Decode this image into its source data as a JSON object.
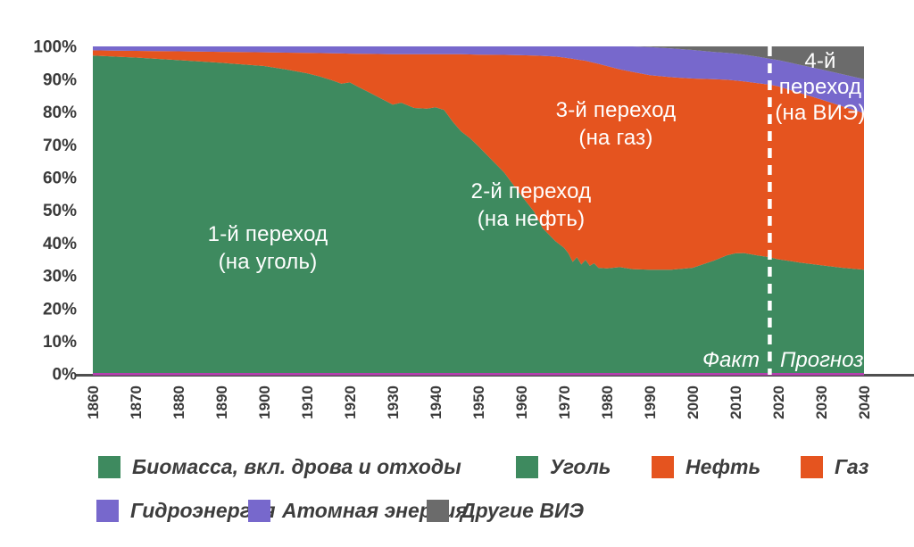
{
  "axes": {
    "y_ticks": [
      "100%",
      "90%",
      "80%",
      "70%",
      "60%",
      "50%",
      "40%",
      "30%",
      "20%",
      "10%",
      "0%"
    ],
    "x_ticks": [
      "1860",
      "1870",
      "1880",
      "1890",
      "1900",
      "1910",
      "1920",
      "1930",
      "1940",
      "1950",
      "1960",
      "1970",
      "1980",
      "1990",
      "2000",
      "2010",
      "2020",
      "2030",
      "2040"
    ]
  },
  "annotations": {
    "t1": {
      "line1": "1-й переход",
      "line2": "(на уголь)"
    },
    "t2": {
      "line1": "2-й переход",
      "line2": "(на нефть)"
    },
    "t3": {
      "line1": "3-й переход",
      "line2": "(на газ)"
    },
    "t4": {
      "line1": "4-й",
      "line2": "переход",
      "line3": "(на ВИЭ)"
    },
    "fact_label": "Факт",
    "forecast_label": "Прогноз"
  },
  "legend": {
    "items": [
      {
        "label": "Биомасса, вкл. дрова и отходы",
        "color": "#3e8a5f"
      },
      {
        "label": "Уголь",
        "color": "#3e8a5f"
      },
      {
        "label": "Нефть",
        "color": "#e5541f"
      },
      {
        "label": "Газ",
        "color": "#e5541f"
      },
      {
        "label": "Гидроэнергия",
        "color": "#7768cc"
      },
      {
        "label": "Атомная энергия",
        "color": "#7768cc"
      },
      {
        "label": "Другие ВИЭ",
        "color": "#6b6b6b"
      }
    ]
  },
  "colors": {
    "green": "#3e8a5f",
    "orange": "#e5541f",
    "purple": "#7768cc",
    "gray": "#6b6b6b",
    "axis_text": "#3a3a3a",
    "axis_line": "#4f4f4f",
    "baseline_magenta": "#b63fb0",
    "divider": "#ffffff",
    "background": "#ffffff"
  },
  "chart_data": {
    "type": "area",
    "stacked": true,
    "unit": "% share of primary energy",
    "ylim": [
      0,
      100
    ],
    "xlim": [
      1860,
      2040
    ],
    "grid": false,
    "legend_position": "bottom",
    "divider_year": 2018,
    "x": [
      1860,
      1870,
      1880,
      1890,
      1900,
      1905,
      1910,
      1913,
      1916,
      1918,
      1920,
      1922,
      1925,
      1928,
      1930,
      1932,
      1935,
      1938,
      1940,
      1942,
      1944,
      1946,
      1948,
      1950,
      1953,
      1956,
      1960,
      1963,
      1965,
      1968,
      1970,
      1971,
      1972,
      1973,
      1974,
      1975,
      1976,
      1977,
      1978,
      1980,
      1983,
      1986,
      1990,
      1995,
      2000,
      2005,
      2008,
      2010,
      2012,
      2015,
      2018,
      2020,
      2025,
      2030,
      2035,
      2040
    ],
    "series": [
      {
        "name": "Биомасса (вкл. дрова и отходы) + Уголь",
        "color": "#3e8a5f",
        "values": [
          97.2,
          96.6,
          95.8,
          95,
          94,
          93,
          91.8,
          90.8,
          89.6,
          88.6,
          89,
          87.6,
          85.6,
          83.6,
          82.2,
          82.8,
          81.2,
          81,
          81.4,
          80.6,
          77,
          74,
          72,
          69.5,
          65.5,
          61.5,
          54.5,
          49.5,
          44.5,
          40.5,
          38.5,
          36.8,
          34.2,
          35.6,
          33.4,
          34.8,
          33,
          33.8,
          32.4,
          32.2,
          32.6,
          32,
          31.8,
          31.8,
          32.4,
          34.6,
          36.2,
          36.8,
          36.9,
          36.2,
          35.6,
          35,
          34,
          33.2,
          32.4,
          31.8
        ]
      },
      {
        "name": "Нефть + Газ",
        "color": "#e5541f",
        "values": [
          1.6,
          2.05,
          2.7,
          3.35,
          4.2,
          5.1,
          6.2,
          7.15,
          8.3,
          9.25,
          8.8,
          10.15,
          12.1,
          14.05,
          15.4,
          14.8,
          16.4,
          16.6,
          16.2,
          17,
          20.6,
          23.6,
          25.55,
          28,
          31.95,
          35.9,
          42.8,
          47.7,
          52.6,
          56.4,
          58.1,
          59.6,
          62,
          60.4,
          62.4,
          60.8,
          62.3,
          61.2,
          62.3,
          61.8,
          60.4,
          60.2,
          59.4,
          58.8,
          57.8,
          55.4,
          53.6,
          52.8,
          52.4,
          52.6,
          52.7,
          52.8,
          51.8,
          50.6,
          49.3,
          47.8
        ]
      },
      {
        "name": "Гидроэнергия + Атомная энергия",
        "color": "#7768cc",
        "values": [
          1.2,
          1.35,
          1.5,
          1.65,
          1.8,
          1.9,
          2,
          2.05,
          2.1,
          2.15,
          2.2,
          2.25,
          2.3,
          2.35,
          2.4,
          2.4,
          2.4,
          2.4,
          2.4,
          2.4,
          2.4,
          2.4,
          2.45,
          2.5,
          2.55,
          2.6,
          2.7,
          2.8,
          2.9,
          3.1,
          3.4,
          3.6,
          3.8,
          4,
          4.2,
          4.4,
          4.7,
          5,
          5.3,
          6,
          7,
          7.8,
          8.6,
          8.8,
          8.7,
          8.3,
          8.2,
          8.2,
          8.2,
          8.1,
          7.9,
          8,
          8.6,
          9.2,
          9.8,
          10.4
        ]
      },
      {
        "name": "Другие ВИЭ",
        "color": "#6b6b6b",
        "values": [
          0,
          0,
          0,
          0,
          0,
          0,
          0,
          0,
          0,
          0,
          0,
          0,
          0,
          0,
          0,
          0,
          0,
          0,
          0,
          0,
          0,
          0,
          0,
          0,
          0,
          0,
          0,
          0,
          0,
          0,
          0,
          0,
          0,
          0,
          0,
          0,
          0,
          0,
          0,
          0,
          0,
          0,
          0.2,
          0.6,
          1.1,
          1.7,
          2,
          2.2,
          2.5,
          3.1,
          3.8,
          4.2,
          5.6,
          7,
          8.5,
          10
        ]
      }
    ]
  }
}
